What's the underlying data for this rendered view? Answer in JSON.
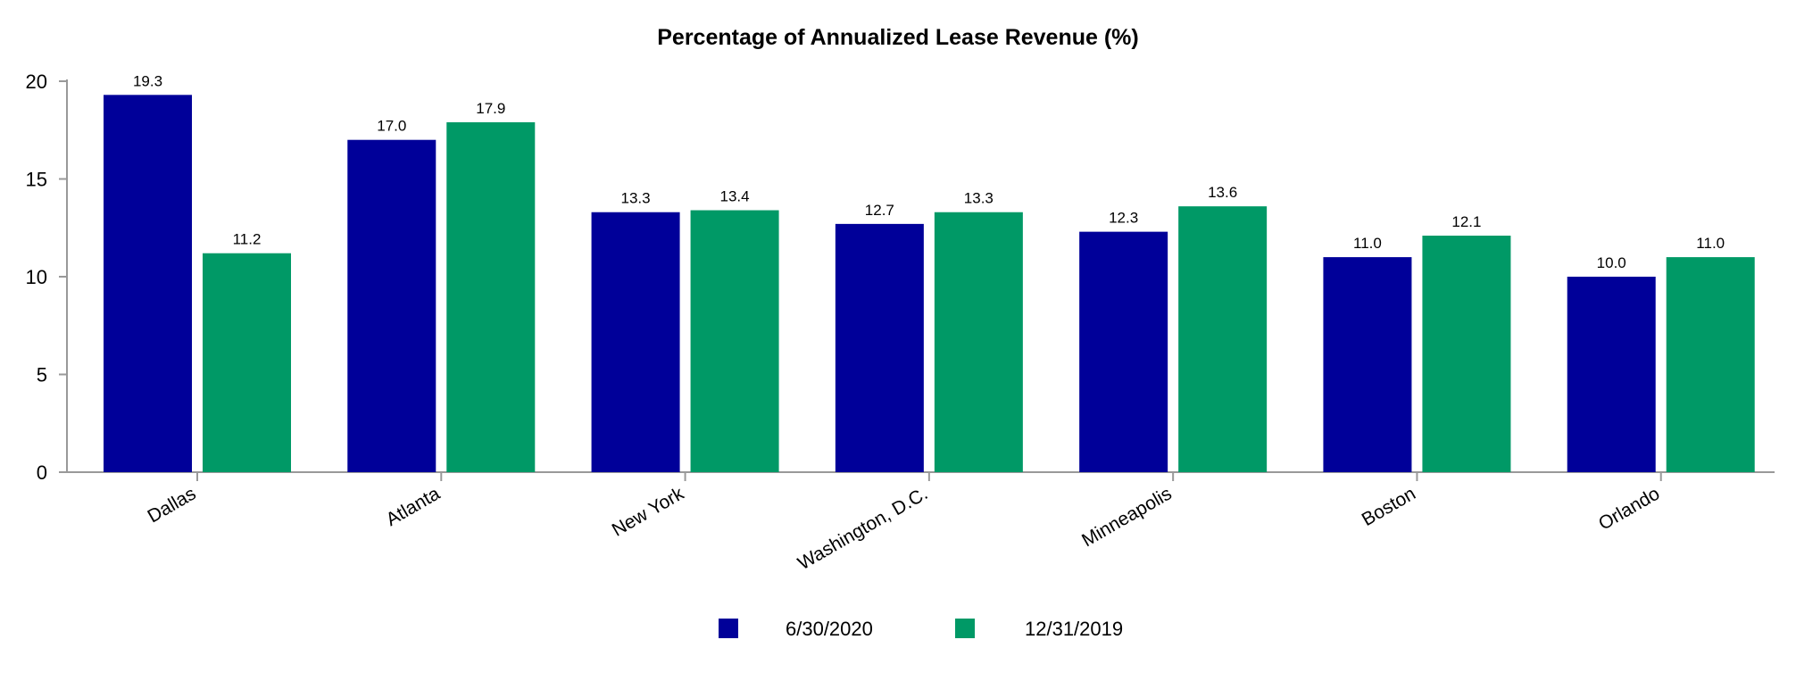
{
  "chart_data": {
    "type": "bar",
    "title": "Percentage of Annualized Lease Revenue (%)",
    "xlabel": "",
    "ylabel": "",
    "ylim": [
      0,
      20
    ],
    "yticks": [
      0,
      5,
      10,
      15,
      20
    ],
    "categories": [
      "Dallas",
      "Atlanta",
      "New York",
      "Washington, D.C.",
      "Minneapolis",
      "Boston",
      "Orlando"
    ],
    "series": [
      {
        "name": "6/30/2020",
        "color": "#000099",
        "values": [
          19.3,
          17.0,
          13.3,
          12.7,
          12.3,
          11.0,
          10.0
        ],
        "labels": [
          "19.3",
          "17.0",
          "13.3",
          "12.7",
          "12.3",
          "11.0",
          "10.0"
        ]
      },
      {
        "name": "12/31/2019",
        "color": "#009966",
        "values": [
          11.2,
          17.9,
          13.4,
          13.3,
          13.6,
          12.1,
          11.0
        ],
        "labels": [
          "11.2",
          "17.9",
          "13.4",
          "13.3",
          "13.6",
          "12.1",
          "11.0"
        ]
      }
    ],
    "grid": false,
    "legend": "bottom-center",
    "axis_color": "#999999"
  }
}
